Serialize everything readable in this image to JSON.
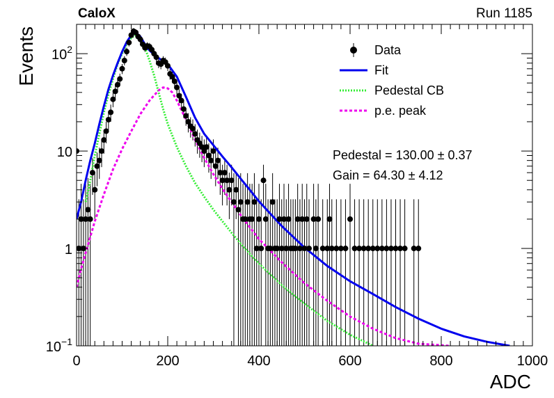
{
  "chart_data": {
    "type": "scatter",
    "experiment_label": "CaloX",
    "run_label": "Run 1185",
    "xlabel": "ADC",
    "ylabel": "Events",
    "xlim": [
      0,
      1000
    ],
    "ylim": [
      0.1,
      200
    ],
    "yscale": "log",
    "grid": false,
    "legend_placement": "top-right",
    "x_ticks": [
      "0",
      "200",
      "400",
      "600",
      "800",
      "1000"
    ],
    "y_ticks": [
      {
        "value": 0.1,
        "base": "10",
        "exp": "−1"
      },
      {
        "value": 1,
        "base": "1",
        "exp": ""
      },
      {
        "value": 10,
        "base": "10",
        "exp": ""
      },
      {
        "value": 100,
        "base": "10",
        "exp": "2"
      }
    ],
    "legend": [
      {
        "label": "Data",
        "style": "marker",
        "color": "#000000"
      },
      {
        "label": "Fit",
        "style": "solid",
        "color": "#0000ee"
      },
      {
        "label": "Pedestal CB",
        "style": "dotted",
        "color": "#33ee33"
      },
      {
        "label": "p.e. peak",
        "style": "dashed",
        "color": "#ee00ee"
      }
    ],
    "stats": [
      {
        "label": "Pedestal = 130.00",
        "pm": "±",
        "err": "0.37"
      },
      {
        "label": "Gain = 64.30",
        "pm": "±",
        "err": "4.12"
      }
    ],
    "series": [
      {
        "name": "Data",
        "color": "#000000",
        "points": [
          [
            0,
            10
          ],
          [
            5,
            1
          ],
          [
            10,
            2
          ],
          [
            15,
            1
          ],
          [
            20,
            2
          ],
          [
            25,
            2.5
          ],
          [
            30,
            2
          ],
          [
            35,
            6
          ],
          [
            40,
            4
          ],
          [
            45,
            7
          ],
          [
            50,
            8
          ],
          [
            55,
            10
          ],
          [
            60,
            13
          ],
          [
            65,
            16
          ],
          [
            70,
            21
          ],
          [
            75,
            25
          ],
          [
            80,
            34
          ],
          [
            85,
            41
          ],
          [
            90,
            48
          ],
          [
            95,
            55
          ],
          [
            100,
            70
          ],
          [
            105,
            85
          ],
          [
            110,
            105
          ],
          [
            115,
            130
          ],
          [
            120,
            155
          ],
          [
            125,
            170
          ],
          [
            130,
            165
          ],
          [
            135,
            150
          ],
          [
            140,
            140
          ],
          [
            145,
            125
          ],
          [
            150,
            115
          ],
          [
            155,
            120
          ],
          [
            160,
            118
          ],
          [
            165,
            110
          ],
          [
            170,
            100
          ],
          [
            175,
            92
          ],
          [
            180,
            80
          ],
          [
            185,
            78
          ],
          [
            190,
            85
          ],
          [
            195,
            82
          ],
          [
            200,
            75
          ],
          [
            205,
            62
          ],
          [
            210,
            58
          ],
          [
            215,
            52
          ],
          [
            220,
            45
          ],
          [
            225,
            37
          ],
          [
            230,
            33
          ],
          [
            235,
            27
          ],
          [
            240,
            23
          ],
          [
            245,
            20
          ],
          [
            250,
            18
          ],
          [
            255,
            17
          ],
          [
            260,
            15
          ],
          [
            265,
            13
          ],
          [
            270,
            12
          ],
          [
            275,
            11
          ],
          [
            280,
            10
          ],
          [
            285,
            11
          ],
          [
            290,
            9
          ],
          [
            295,
            8
          ],
          [
            300,
            10
          ],
          [
            305,
            7
          ],
          [
            310,
            8
          ],
          [
            315,
            6
          ],
          [
            320,
            5
          ],
          [
            325,
            6
          ],
          [
            330,
            5
          ],
          [
            335,
            4
          ],
          [
            340,
            5
          ],
          [
            345,
            3
          ],
          [
            350,
            4
          ],
          [
            355,
            2.5
          ],
          [
            360,
            3
          ],
          [
            365,
            2
          ],
          [
            370,
            2
          ],
          [
            375,
            3
          ],
          [
            380,
            2
          ],
          [
            385,
            2
          ],
          [
            390,
            3
          ],
          [
            395,
            1
          ],
          [
            400,
            2
          ],
          [
            405,
            1
          ],
          [
            410,
            5
          ],
          [
            415,
            2
          ],
          [
            420,
            1
          ],
          [
            425,
            1
          ],
          [
            430,
            3
          ],
          [
            435,
            1
          ],
          [
            440,
            1
          ],
          [
            445,
            2
          ],
          [
            450,
            1
          ],
          [
            455,
            2
          ],
          [
            460,
            1
          ],
          [
            465,
            2
          ],
          [
            470,
            1
          ],
          [
            475,
            1
          ],
          [
            480,
            1
          ],
          [
            485,
            2
          ],
          [
            490,
            1
          ],
          [
            495,
            2
          ],
          [
            500,
            1
          ],
          [
            505,
            2
          ],
          [
            510,
            1
          ],
          [
            520,
            2
          ],
          [
            525,
            1
          ],
          [
            530,
            2
          ],
          [
            540,
            1
          ],
          [
            550,
            1
          ],
          [
            555,
            2
          ],
          [
            560,
            1
          ],
          [
            570,
            1
          ],
          [
            580,
            1
          ],
          [
            590,
            1
          ],
          [
            600,
            2
          ],
          [
            610,
            1
          ],
          [
            620,
            1
          ],
          [
            630,
            1
          ],
          [
            640,
            1
          ],
          [
            650,
            1
          ],
          [
            660,
            1
          ],
          [
            670,
            1
          ],
          [
            680,
            1
          ],
          [
            690,
            1
          ],
          [
            700,
            1
          ],
          [
            710,
            1
          ],
          [
            720,
            1
          ],
          [
            740,
            1
          ],
          [
            750,
            1
          ]
        ]
      },
      {
        "name": "Fit",
        "color": "#0000ee",
        "points": [
          [
            0,
            2
          ],
          [
            10,
            3
          ],
          [
            20,
            5
          ],
          [
            30,
            8
          ],
          [
            40,
            12
          ],
          [
            50,
            19
          ],
          [
            60,
            29
          ],
          [
            70,
            43
          ],
          [
            80,
            60
          ],
          [
            90,
            80
          ],
          [
            100,
            105
          ],
          [
            110,
            132
          ],
          [
            120,
            155
          ],
          [
            130,
            165
          ],
          [
            140,
            150
          ],
          [
            150,
            125
          ],
          [
            160,
            108
          ],
          [
            170,
            98
          ],
          [
            180,
            90
          ],
          [
            190,
            84
          ],
          [
            200,
            78
          ],
          [
            220,
            58
          ],
          [
            240,
            36
          ],
          [
            260,
            22
          ],
          [
            280,
            15
          ],
          [
            300,
            11.5
          ],
          [
            320,
            8.8
          ],
          [
            340,
            6.8
          ],
          [
            360,
            5.2
          ],
          [
            380,
            4.0
          ],
          [
            400,
            3.05
          ],
          [
            450,
            1.7
          ],
          [
            500,
            1.02
          ],
          [
            550,
            0.66
          ],
          [
            600,
            0.46
          ],
          [
            650,
            0.34
          ],
          [
            700,
            0.25
          ],
          [
            750,
            0.19
          ],
          [
            800,
            0.15
          ],
          [
            850,
            0.125
          ],
          [
            900,
            0.11
          ],
          [
            950,
            0.1
          ]
        ]
      },
      {
        "name": "Pedestal CB",
        "color": "#33ee33",
        "points": [
          [
            20,
            3
          ],
          [
            30,
            5
          ],
          [
            40,
            9
          ],
          [
            50,
            15
          ],
          [
            60,
            25
          ],
          [
            70,
            38
          ],
          [
            80,
            55
          ],
          [
            90,
            78
          ],
          [
            100,
            100
          ],
          [
            110,
            125
          ],
          [
            120,
            145
          ],
          [
            130,
            155
          ],
          [
            140,
            138
          ],
          [
            150,
            115
          ],
          [
            160,
            85
          ],
          [
            170,
            60
          ],
          [
            180,
            40
          ],
          [
            190,
            27
          ],
          [
            200,
            19
          ],
          [
            220,
            11
          ],
          [
            240,
            7
          ],
          [
            260,
            4.7
          ],
          [
            280,
            3.4
          ],
          [
            300,
            2.5
          ],
          [
            320,
            1.9
          ],
          [
            340,
            1.45
          ],
          [
            360,
            1.12
          ],
          [
            380,
            0.88
          ],
          [
            400,
            0.7
          ],
          [
            450,
            0.42
          ],
          [
            500,
            0.27
          ],
          [
            550,
            0.18
          ],
          [
            600,
            0.13
          ],
          [
            650,
            0.1
          ]
        ]
      },
      {
        "name": "p.e. peak",
        "color": "#ee00ee",
        "points": [
          [
            0,
            0.4
          ],
          [
            10,
            0.62
          ],
          [
            20,
            0.9
          ],
          [
            40,
            1.9
          ],
          [
            60,
            3.6
          ],
          [
            80,
            6.5
          ],
          [
            100,
            10.5
          ],
          [
            120,
            16
          ],
          [
            140,
            24
          ],
          [
            160,
            33
          ],
          [
            180,
            42
          ],
          [
            190,
            45
          ],
          [
            200,
            44
          ],
          [
            210,
            40
          ],
          [
            220,
            33
          ],
          [
            240,
            21
          ],
          [
            260,
            13
          ],
          [
            280,
            8.5
          ],
          [
            300,
            5.8
          ],
          [
            320,
            4.1
          ],
          [
            340,
            3.0
          ],
          [
            360,
            2.2
          ],
          [
            380,
            1.65
          ],
          [
            400,
            1.25
          ],
          [
            450,
            0.72
          ],
          [
            500,
            0.44
          ],
          [
            550,
            0.29
          ],
          [
            600,
            0.2
          ],
          [
            650,
            0.15
          ],
          [
            700,
            0.12
          ],
          [
            750,
            0.105
          ],
          [
            820,
            0.1
          ]
        ]
      }
    ]
  }
}
